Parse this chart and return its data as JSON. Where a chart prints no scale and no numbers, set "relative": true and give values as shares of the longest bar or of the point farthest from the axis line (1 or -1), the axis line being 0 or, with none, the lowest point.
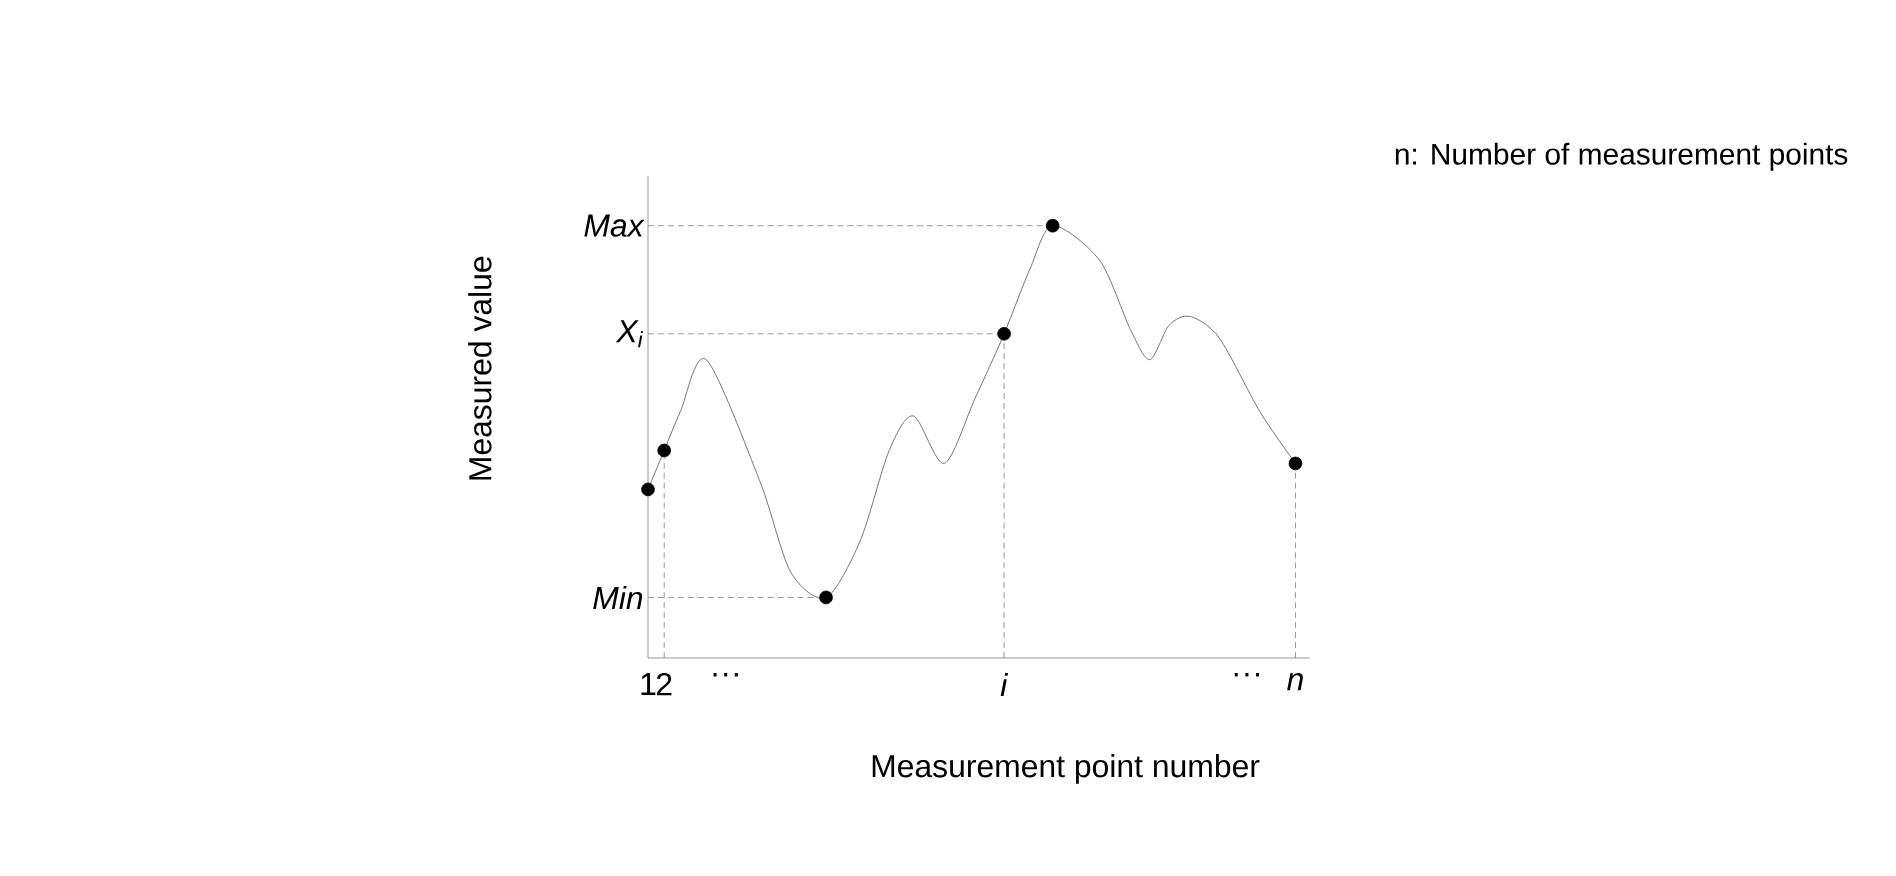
{
  "chart_data": {
    "type": "line",
    "relative": true,
    "xlabel": "Measurement point number",
    "ylabel": "Measured value",
    "xlim": [
      1,
      41.9
    ],
    "xticks": [
      1,
      2,
      {
        "value": 5.8,
        "label": "···"
      },
      {
        "value": 23,
        "label": "*i*"
      },
      {
        "value": 38,
        "label": "···"
      },
      {
        "value": 41,
        "label": "*n*"
      }
    ],
    "series": [
      {
        "type": "line",
        "color": "#555555",
        "marker": "none",
        "x": [
          1,
          2,
          3,
          4.6,
          7.9,
          9.8,
          12,
          14.1,
          15.9,
          17.4,
          19.3,
          21.2,
          23,
          24.6,
          26,
          28.9,
          30.8,
          32,
          33.2,
          34.5,
          36.3,
          38.8,
          41
        ],
        "values": [
          0.39,
          0.48,
          0.57,
          0.69,
          0.41,
          0.2,
          0.14,
          0.27,
          0.48,
          0.56,
          0.45,
          0.6,
          0.75,
          0.9,
          1,
          0.92,
          0.76,
          0.69,
          0.77,
          0.79,
          0.74,
          0.57,
          0.45
        ]
      },
      {
        "type": "scatter",
        "color": "#000000",
        "marker": "circle",
        "x": [
          1,
          2,
          12,
          23,
          26,
          41
        ],
        "values": [
          0.39,
          0.48,
          0.14,
          0.75,
          1,
          0.45
        ]
      },
      {
        "name": "Max",
        "color": "#808080",
        "marker": "none",
        "line_style": "dashed",
        "x": [
          1,
          26
        ],
        "values": [
          1,
          1
        ]
      },
      {
        "name": "X$_{i}$",
        "color": "#808080",
        "marker": "none",
        "line_style": "dashed",
        "x": [
          1,
          23
        ],
        "values": [
          0.75,
          0.75
        ]
      },
      {
        "name": "Min",
        "color": "#808080",
        "marker": "none",
        "line_style": "dashed",
        "x": [
          1,
          12
        ],
        "values": [
          0.14,
          0.14
        ]
      },
      {
        "color": "#808080",
        "marker": "none",
        "line_style": "dashed",
        "x": [
          2,
          2
        ],
        "values": [
          0,
          0.48
        ]
      },
      {
        "color": "#808080",
        "marker": "none",
        "line_style": "dashed",
        "x": [
          23,
          23
        ],
        "values": [
          0,
          0.75
        ]
      },
      {
        "color": "#808080",
        "marker": "none",
        "line_style": "dashed",
        "x": [
          41,
          41
        ],
        "values": [
          0,
          0.45
        ]
      }
    ],
    "annotations": [
      "n: Number of measurement points"
    ]
  }
}
